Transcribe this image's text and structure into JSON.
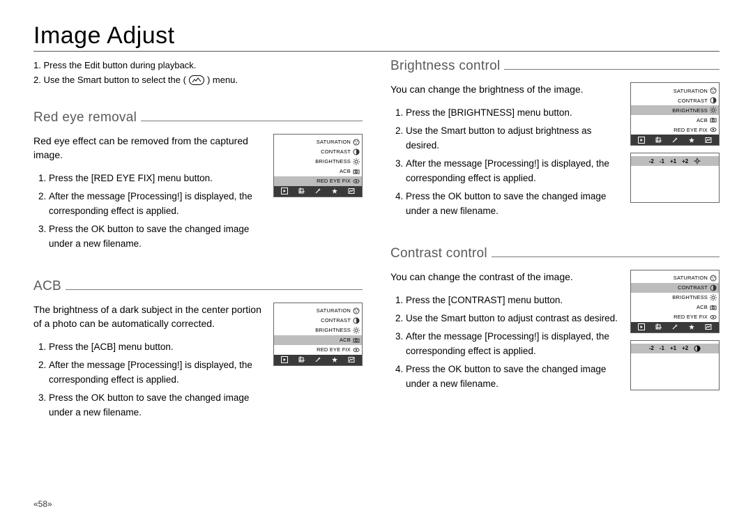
{
  "page_title": "Image Adjust",
  "page_number": "«58»",
  "top_steps": {
    "s1": "1. Press the Edit button during playback.",
    "s2a": "2. Use the Smart button to select the (",
    "s2b": ") menu."
  },
  "menu_labels": {
    "saturation": "SATURATION",
    "contrast": "CONTRAST",
    "brightness": "BRIGHTNESS",
    "acb": "ACB",
    "redeye": "RED EYE FIX"
  },
  "slider": {
    "m2": "-2",
    "m1": "-1",
    "p1": "+1",
    "p2": "+2"
  },
  "sections": {
    "redeye": {
      "title": "Red eye removal",
      "intro": "Red eye effect can be removed from the captured image.",
      "steps": [
        "Press the [RED EYE FIX] menu button.",
        "After the message [Processing!] is displayed, the corresponding effect is applied.",
        "Press the OK button to save the changed image under a new filename."
      ],
      "highlight": "redeye"
    },
    "acb": {
      "title": "ACB",
      "intro": "The brightness of a dark subject in the center portion of a photo can be automatically corrected.",
      "steps": [
        "Press the [ACB] menu button.",
        "After the message [Processing!] is displayed, the corresponding effect is applied.",
        "Press the OK button to save the changed image under a new filename."
      ],
      "highlight": "acb"
    },
    "brightness": {
      "title": "Brightness control",
      "intro": "You can change the brightness of the image.",
      "steps": [
        "Press the [BRIGHTNESS] menu button.",
        "Use the Smart button to adjust brightness as desired.",
        "After the message [Processing!] is displayed, the corresponding effect is applied.",
        "Press the OK button to save the changed image under a new filename."
      ],
      "highlight": "brightness",
      "slider_icon": "sun"
    },
    "contrast": {
      "title": "Contrast control",
      "intro": "You can change the contrast of the image.",
      "steps": [
        "Press the [CONTRAST] menu button.",
        "Use the Smart button to adjust contrast as desired.",
        "After the message [Processing!] is displayed, the corresponding effect is applied.",
        "Press the OK button to save the changed image under a new filename."
      ],
      "highlight": "contrast",
      "slider_icon": "half"
    }
  }
}
